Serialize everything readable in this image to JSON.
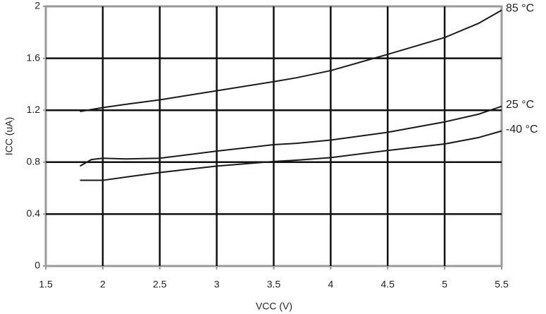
{
  "chart_data": {
    "type": "line",
    "xlabel": "VCC (V)",
    "ylabel": "ICC (uA)",
    "x": [
      1.8,
      1.9,
      2.0,
      2.2,
      2.5,
      3.0,
      3.5,
      3.7,
      4.0,
      4.5,
      5.0,
      5.3,
      5.5
    ],
    "series": [
      {
        "name": "85 °C",
        "color": "#1a1a1a",
        "values": [
          1.19,
          1.205,
          1.22,
          1.245,
          1.28,
          1.35,
          1.42,
          1.45,
          1.505,
          1.63,
          1.76,
          1.87,
          1.97
        ]
      },
      {
        "name": "25 °C",
        "color": "#1a1a1a",
        "values": [
          0.77,
          0.82,
          0.83,
          0.825,
          0.83,
          0.885,
          0.935,
          0.945,
          0.97,
          1.03,
          1.11,
          1.17,
          1.23
        ]
      },
      {
        "name": "-40 °C",
        "color": "#1a1a1a",
        "values": [
          0.66,
          0.66,
          0.66,
          0.685,
          0.72,
          0.77,
          0.805,
          0.815,
          0.835,
          0.89,
          0.94,
          0.99,
          1.04
        ]
      }
    ],
    "xlim": [
      1.5,
      5.5
    ],
    "ylim": [
      0,
      2
    ],
    "xticks": [
      1.5,
      2,
      2.5,
      3,
      3.5,
      4,
      4.5,
      5,
      5.5
    ],
    "yticks": [
      0,
      0.4,
      0.8,
      1.2,
      1.6,
      2
    ],
    "grid": true
  }
}
